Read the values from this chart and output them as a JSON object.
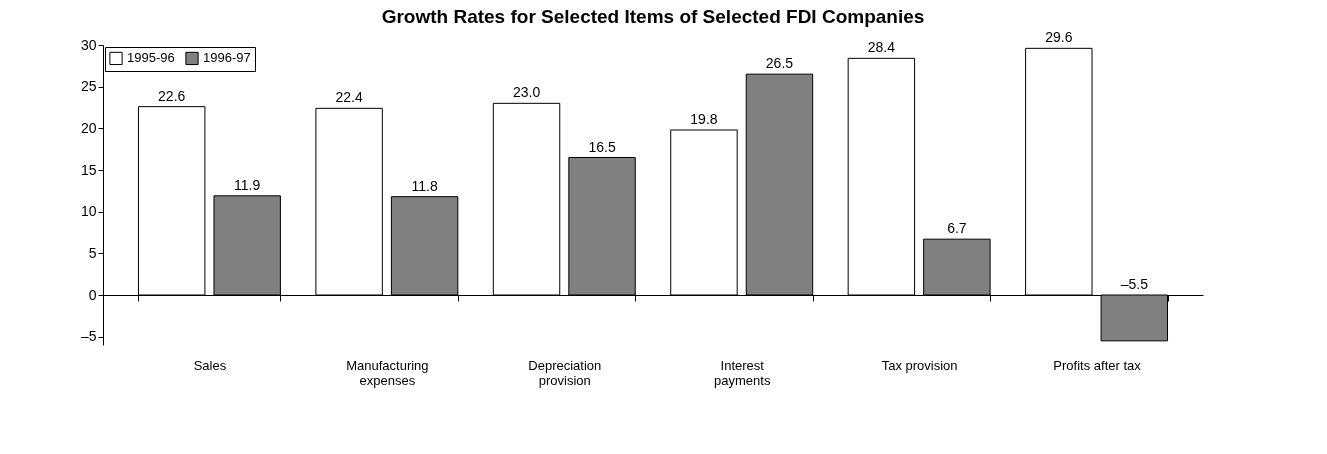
{
  "chart_data": {
    "type": "bar",
    "title": "Growth Rates for Selected Items of Selected FDI Companies",
    "categories": [
      "Sales",
      "Manufacturing\nexpenses",
      "Depreciation\nprovision",
      "Interest\npayments",
      "Tax provision",
      "Profits after tax"
    ],
    "series": [
      {
        "name": "1995-96",
        "color": "#ffffff",
        "values": [
          22.6,
          22.4,
          23.0,
          19.8,
          28.4,
          29.6
        ],
        "value_labels": [
          "22.6",
          "22.4",
          "23.0",
          "19.8",
          "28.4",
          "29.6"
        ]
      },
      {
        "name": "1996-97",
        "color": "#808080",
        "values": [
          11.9,
          11.8,
          16.5,
          26.5,
          6.7,
          -5.5
        ],
        "value_labels": [
          "11.9",
          "11.8",
          "16.5",
          "26.5",
          "6.7",
          "–5.5"
        ]
      }
    ],
    "ylim": [
      -6,
      30
    ],
    "yticks": [
      {
        "value": -5,
        "label": "–5"
      },
      0,
      5,
      10,
      15,
      20,
      25,
      30
    ],
    "legend": "top left"
  }
}
